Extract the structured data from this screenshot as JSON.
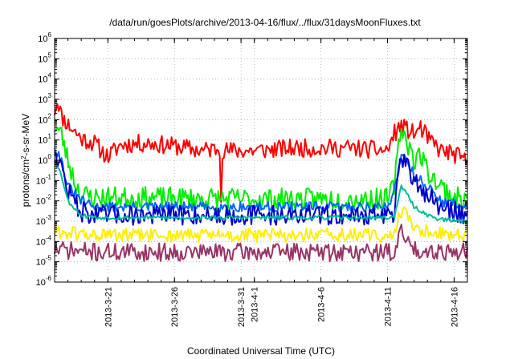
{
  "chart_data": {
    "type": "line",
    "title": "/data/run/goesPlots/archive/2013-04-16/flux/../flux/31daysMoonFluxes.txt",
    "xlabel": "Coordinated Universal Time (UTC)",
    "ylabel": {
      "base": "protons/cm",
      "sup": "2",
      "rest": "-s-sr-MeV"
    },
    "y_scale": "log",
    "ylim_exp": [
      -6,
      6
    ],
    "y_ticks": [
      {
        "base": "10",
        "exp": "6"
      },
      {
        "base": "10",
        "exp": "5"
      },
      {
        "base": "10",
        "exp": "4"
      },
      {
        "base": "10",
        "exp": "3"
      },
      {
        "base": "10",
        "exp": "2"
      },
      {
        "base": "10",
        "exp": "1"
      },
      {
        "base": "10",
        "exp": "0"
      },
      {
        "base": "10",
        "exp": "-1"
      },
      {
        "base": "10",
        "exp": "-2"
      },
      {
        "base": "10",
        "exp": "-3"
      },
      {
        "base": "10",
        "exp": "-4"
      },
      {
        "base": "10",
        "exp": "-5"
      },
      {
        "base": "10",
        "exp": "-6"
      }
    ],
    "xlim": [
      "2013-03-17",
      "2013-04-17"
    ],
    "x_ticks": [
      {
        "date": "2013-03-21",
        "label": "2013-3-21"
      },
      {
        "date": "2013-03-26",
        "label": "2013-3-26"
      },
      {
        "date": "2013-03-31",
        "label": "2013-3-31"
      },
      {
        "date": "2013-04-01",
        "label": "2013-4-1"
      },
      {
        "date": "2013-04-06",
        "label": "2013-4-6"
      },
      {
        "date": "2013-04-11",
        "label": "2013-4-11"
      },
      {
        "date": "2013-04-16",
        "label": "2013-4-16"
      }
    ],
    "grid": true,
    "legend": "none",
    "series": [
      {
        "color": "#ff0000",
        "noise": 0.45,
        "seed": 11,
        "points": [
          [
            "2013-03-17T00:00",
            300
          ],
          [
            "2013-03-17T06:00",
            1000
          ],
          [
            "2013-03-17T12:00",
            150
          ],
          [
            "2013-03-18T00:00",
            60
          ],
          [
            "2013-03-19T00:00",
            12
          ],
          [
            "2013-03-20T00:00",
            7
          ],
          [
            "2013-03-20T12:00",
            3
          ],
          [
            "2013-03-21T00:00",
            1.5
          ],
          [
            "2013-03-22T00:00",
            6
          ],
          [
            "2013-03-24T00:00",
            7
          ],
          [
            "2013-03-26T00:00",
            5
          ],
          [
            "2013-03-28T00:00",
            3
          ],
          [
            "2013-03-29T10:00",
            4
          ],
          [
            "2013-03-29T12:00",
            0.02
          ],
          [
            "2013-03-29T14:00",
            3
          ],
          [
            "2013-04-01T00:00",
            3
          ],
          [
            "2013-04-04T00:00",
            4
          ],
          [
            "2013-04-08T00:00",
            4
          ],
          [
            "2013-04-11T00:00",
            3
          ],
          [
            "2013-04-11T12:00",
            20
          ],
          [
            "2013-04-12T00:00",
            50
          ],
          [
            "2013-04-13T00:00",
            20
          ],
          [
            "2013-04-13T12:00",
            40
          ],
          [
            "2013-04-14T00:00",
            12
          ],
          [
            "2013-04-15T00:00",
            3
          ],
          [
            "2013-04-16T00:00",
            2
          ],
          [
            "2013-04-17T00:00",
            0.8
          ]
        ]
      },
      {
        "color": "#00ee00",
        "noise": 0.55,
        "seed": 23,
        "points": [
          [
            "2013-03-17T00:00",
            50
          ],
          [
            "2013-03-17T12:00",
            20
          ],
          [
            "2013-03-18T00:00",
            1
          ],
          [
            "2013-03-18T12:00",
            0.1
          ],
          [
            "2013-03-19T00:00",
            0.02
          ],
          [
            "2013-03-20T00:00",
            0.015
          ],
          [
            "2013-04-01T00:00",
            0.012
          ],
          [
            "2013-04-11T00:00",
            0.012
          ],
          [
            "2013-04-11T12:00",
            0.05
          ],
          [
            "2013-04-12T00:00",
            50
          ],
          [
            "2013-04-12T12:00",
            8
          ],
          [
            "2013-04-13T00:00",
            1
          ],
          [
            "2013-04-13T12:00",
            2
          ],
          [
            "2013-04-14T00:00",
            0.3
          ],
          [
            "2013-04-15T00:00",
            0.05
          ],
          [
            "2013-04-16T00:00",
            0.015
          ],
          [
            "2013-04-17T00:00",
            0.01
          ]
        ]
      },
      {
        "color": "#0066ff",
        "noise": 0.25,
        "seed": 31,
        "points": [
          [
            "2013-03-17T00:00",
            5
          ],
          [
            "2013-03-17T12:00",
            1
          ],
          [
            "2013-03-18T00:00",
            0.05
          ],
          [
            "2013-03-19T00:00",
            0.01
          ],
          [
            "2013-03-20T00:00",
            0.005
          ],
          [
            "2013-04-11T00:00",
            0.005
          ],
          [
            "2013-04-11T12:00",
            0.03
          ],
          [
            "2013-04-12T00:00",
            2
          ],
          [
            "2013-04-12T12:00",
            1
          ],
          [
            "2013-04-13T00:00",
            0.2
          ],
          [
            "2013-04-14T00:00",
            0.05
          ],
          [
            "2013-04-15T00:00",
            0.01
          ],
          [
            "2013-04-17T00:00",
            0.005
          ]
        ]
      },
      {
        "color": "#0000cc",
        "noise": 0.5,
        "seed": 47,
        "points": [
          [
            "2013-03-17T00:00",
            3
          ],
          [
            "2013-03-17T12:00",
            0.5
          ],
          [
            "2013-03-18T00:00",
            0.03
          ],
          [
            "2013-03-19T00:00",
            0.003
          ],
          [
            "2013-03-20T00:00",
            0.002
          ],
          [
            "2013-04-11T00:00",
            0.002
          ],
          [
            "2013-04-11T12:00",
            0.003
          ],
          [
            "2013-04-12T00:00",
            0.8
          ],
          [
            "2013-04-12T12:00",
            0.5
          ],
          [
            "2013-04-13T00:00",
            0.1
          ],
          [
            "2013-04-14T00:00",
            0.02
          ],
          [
            "2013-04-15T00:00",
            0.004
          ],
          [
            "2013-04-16T00:00",
            0.003
          ],
          [
            "2013-04-17T00:00",
            0.002
          ]
        ]
      },
      {
        "color": "#00bb99",
        "noise": 0.1,
        "seed": 53,
        "points": [
          [
            "2013-03-17T00:00",
            1
          ],
          [
            "2013-03-17T12:00",
            0.2
          ],
          [
            "2013-03-18T00:00",
            0.01
          ],
          [
            "2013-03-19T00:00",
            0.002
          ],
          [
            "2013-03-20T00:00",
            0.0015
          ],
          [
            "2013-04-11T00:00",
            0.0015
          ],
          [
            "2013-04-11T12:00",
            0.0015
          ],
          [
            "2013-04-12T00:00",
            0.05
          ],
          [
            "2013-04-12T12:00",
            0.02
          ],
          [
            "2013-04-13T00:00",
            0.005
          ],
          [
            "2013-04-14T00:00",
            0.002
          ],
          [
            "2013-04-15T00:00",
            0.0012
          ],
          [
            "2013-04-17T00:00",
            0.001
          ]
        ]
      },
      {
        "color": "#ffee00",
        "noise": 0.35,
        "seed": 61,
        "points": [
          [
            "2013-03-17T00:00",
            0.0003
          ],
          [
            "2013-03-20T00:00",
            0.0002
          ],
          [
            "2013-04-11T00:00",
            0.0002
          ],
          [
            "2013-04-11T12:00",
            0.0002
          ],
          [
            "2013-04-12T00:00",
            0.003
          ],
          [
            "2013-04-12T12:00",
            0.002
          ],
          [
            "2013-04-13T00:00",
            0.0005
          ],
          [
            "2013-04-14T00:00",
            0.0003
          ],
          [
            "2013-04-17T00:00",
            0.0002
          ]
        ]
      },
      {
        "color": "#993366",
        "noise": 0.45,
        "seed": 71,
        "points": [
          [
            "2013-03-17T00:00",
            4e-05
          ],
          [
            "2013-03-20T00:00",
            3e-05
          ],
          [
            "2013-04-11T00:00",
            3e-05
          ],
          [
            "2013-04-11T12:00",
            3e-05
          ],
          [
            "2013-04-12T00:00",
            0.0003
          ],
          [
            "2013-04-12T12:00",
            0.0001
          ],
          [
            "2013-04-13T00:00",
            4e-05
          ],
          [
            "2013-04-17T00:00",
            3e-05
          ]
        ]
      }
    ]
  }
}
